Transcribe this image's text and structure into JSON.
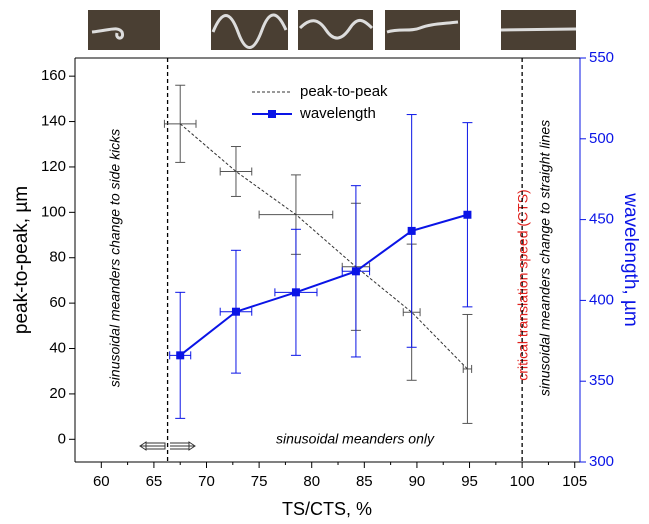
{
  "chart_data": {
    "type": "line",
    "xlabel": "TS/CTS, %",
    "ylabel": "peak-to-peak, µm",
    "y2label": "wavelength, µm",
    "xlim": [
      57.5,
      105.5
    ],
    "ylim": [
      -10,
      168
    ],
    "y2lim": [
      300,
      550
    ],
    "xticks": [
      60,
      65,
      70,
      75,
      80,
      85,
      90,
      95,
      100,
      105
    ],
    "yticks": [
      0,
      20,
      40,
      60,
      80,
      100,
      120,
      140,
      160
    ],
    "y2ticks": [
      300,
      350,
      400,
      450,
      500,
      550
    ],
    "legend": "top",
    "series": [
      {
        "name": "peak-to-peak",
        "color": "#333333",
        "dashed": true,
        "axis": "y",
        "x": [
          67.5,
          72.8,
          78.5,
          84.2,
          89.5,
          94.8
        ],
        "values": [
          139,
          118,
          99,
          76,
          56,
          31
        ],
        "yerr": [
          17,
          11,
          17.5,
          28,
          30,
          24
        ],
        "xerr": [
          1.5,
          1.5,
          3.5,
          1.3,
          0.8,
          0.4
        ]
      },
      {
        "name": "wavelength",
        "color": "#0a14e6",
        "dashed": false,
        "axis": "y2",
        "x": [
          67.5,
          72.8,
          78.5,
          84.2,
          89.5,
          94.8
        ],
        "values": [
          366,
          393,
          405,
          418,
          443,
          453
        ],
        "yerr": [
          39,
          38,
          39,
          53,
          72,
          57
        ],
        "xerr": [
          1.0,
          1.5,
          2.0,
          1.3,
          0,
          0
        ]
      }
    ],
    "vlines": [
      66.3,
      100
    ],
    "annotations": {
      "side_kicks": "sinusoidal meanders change to side kicks",
      "only": "sinusoidal meanders only",
      "cts": "critical translation speed (CTS)",
      "straight": "sinusoidal meanders change to straight lines"
    }
  }
}
